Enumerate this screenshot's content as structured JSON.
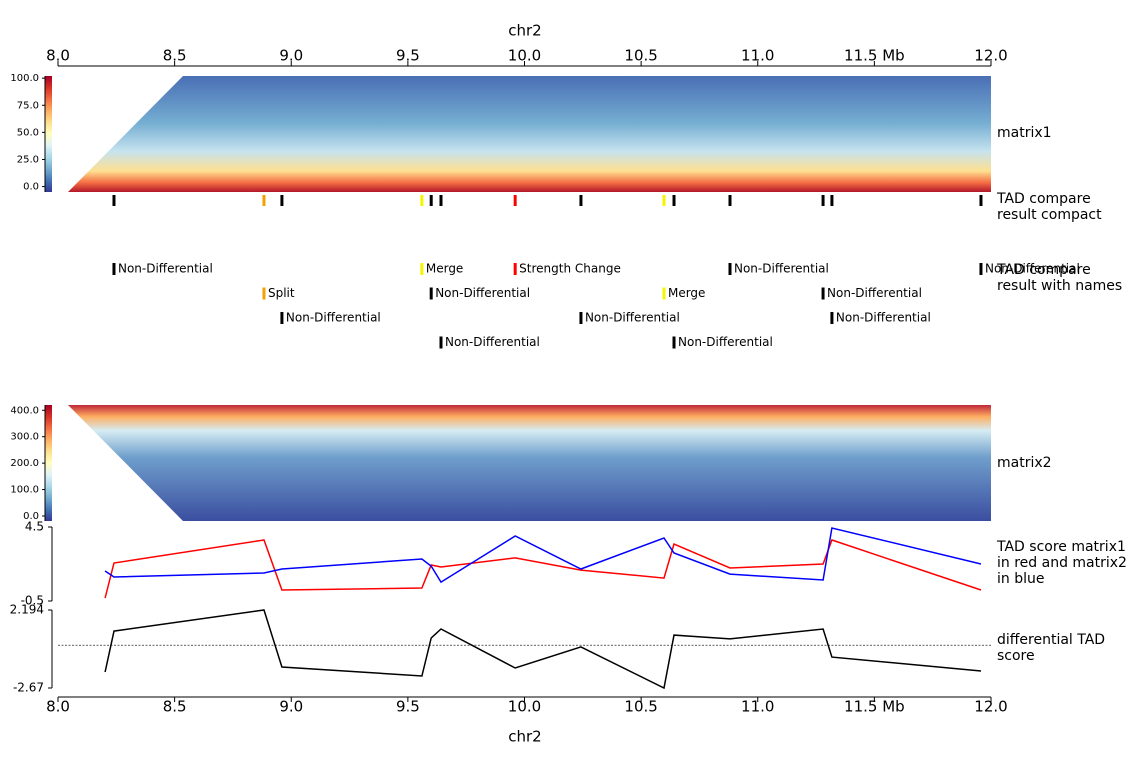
{
  "title": "chr2",
  "xlim": [
    8.0,
    12.0
  ],
  "xticks": [
    {
      "value": 8.0,
      "label": "8.0"
    },
    {
      "value": 8.5,
      "label": "8.5"
    },
    {
      "value": 9.0,
      "label": "9.0"
    },
    {
      "value": 9.5,
      "label": "9.5"
    },
    {
      "value": 10.0,
      "label": "10.0"
    },
    {
      "value": 10.5,
      "label": "10.5"
    },
    {
      "value": 11.0,
      "label": "11.0"
    },
    {
      "value": 11.5,
      "label": "11.5 Mb"
    },
    {
      "value": 12.0,
      "label": "12.0"
    }
  ],
  "chart_data": [
    {
      "type": "heatmap",
      "label": [
        "matrix1"
      ],
      "zlim": [
        -5,
        102
      ],
      "zticks": [
        {
          "value": 0,
          "label": "0.0"
        },
        {
          "value": 25,
          "label": "25.0"
        },
        {
          "value": 50,
          "label": "50.0"
        },
        {
          "value": 75,
          "label": "75.0"
        },
        {
          "value": 100,
          "label": "100.0"
        }
      ]
    },
    {
      "type": "tad-compact",
      "label": [
        "TAD compare",
        "result compact"
      ]
    },
    {
      "type": "tad-names",
      "label": [
        "TAD compare",
        "result with names"
      ]
    },
    {
      "type": "heatmap-inverted",
      "label": [
        "matrix2"
      ],
      "zlim": [
        -19,
        420
      ],
      "zticks": [
        {
          "value": 0,
          "label": "0.0"
        },
        {
          "value": 100,
          "label": "100.0"
        },
        {
          "value": 200,
          "label": "200.0"
        },
        {
          "value": 300,
          "label": "300.0"
        },
        {
          "value": 400,
          "label": "400.0"
        }
      ]
    },
    {
      "type": "line",
      "label": [
        "TAD score matrix1",
        "in red and matrix2",
        "in blue"
      ],
      "ylim": [
        -0.5,
        4.5
      ],
      "yticks": [
        -0.5,
        4.5
      ],
      "x": [
        8.202,
        8.24,
        8.883,
        8.96,
        9.56,
        9.6,
        9.642,
        9.96,
        10.242,
        10.598,
        10.641,
        10.881,
        11.28,
        11.318,
        11.957
      ],
      "series": [
        {
          "color": "#ff0000",
          "values": [
            -0.3,
            2.07,
            3.62,
            0.24,
            0.38,
            1.93,
            1.8,
            2.41,
            1.59,
            1.05,
            3.35,
            1.73,
            2.0,
            3.62,
            0.24
          ]
        },
        {
          "color": "#0000ff",
          "values": [
            1.53,
            1.12,
            1.39,
            1.66,
            2.34,
            1.86,
            0.78,
            3.89,
            1.66,
            3.76,
            2.74,
            1.32,
            0.92,
            4.43,
            2.0
          ]
        }
      ]
    },
    {
      "type": "line",
      "label": [
        "differential TAD",
        "score"
      ],
      "ylim": [
        -2.67,
        2.194
      ],
      "yticks": [
        -2.67,
        2.194
      ],
      "hline": 0,
      "x": [
        8.202,
        8.24,
        8.883,
        8.96,
        9.56,
        9.6,
        9.642,
        9.96,
        10.242,
        10.598,
        10.641,
        10.881,
        11.28,
        11.318,
        11.957
      ],
      "series": [
        {
          "color": "#000000",
          "values": [
            -1.67,
            0.88,
            2.194,
            -1.36,
            -1.92,
            0.45,
            1.01,
            -1.42,
            -0.11,
            -2.67,
            0.63,
            0.39,
            1.01,
            -0.74,
            -1.61
          ]
        }
      ]
    }
  ],
  "type_colors": {
    "Non-Differential": "#000000",
    "Split": "#f5a000",
    "Merge": "#f5f500",
    "Strength Change": "#ff0000"
  },
  "events": [
    {
      "position": 8.24,
      "type": "Non-Differential"
    },
    {
      "position": 8.883,
      "type": "Split"
    },
    {
      "position": 8.96,
      "type": "Non-Differential"
    },
    {
      "position": 9.56,
      "type": "Merge"
    },
    {
      "position": 9.6,
      "type": "Non-Differential"
    },
    {
      "position": 9.642,
      "type": "Non-Differential"
    },
    {
      "position": 9.96,
      "type": "Strength Change"
    },
    {
      "position": 10.242,
      "type": "Non-Differential"
    },
    {
      "position": 10.598,
      "type": "Merge"
    },
    {
      "position": 10.641,
      "type": "Non-Differential"
    },
    {
      "position": 10.881,
      "type": "Non-Differential"
    },
    {
      "position": 11.28,
      "type": "Non-Differential"
    },
    {
      "position": 11.318,
      "type": "Non-Differential"
    },
    {
      "position": 11.957,
      "type": "Non-Differential"
    }
  ]
}
